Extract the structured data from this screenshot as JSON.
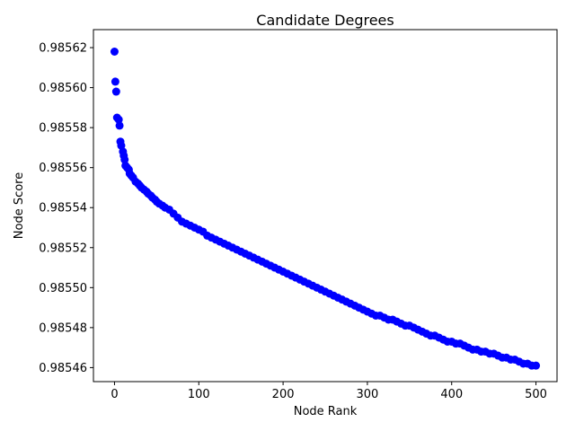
{
  "chart_data": {
    "type": "scatter",
    "title": "Candidate Degrees",
    "xlabel": "Node Rank",
    "ylabel": "Node Score",
    "xlim": [
      -25,
      525
    ],
    "ylim": [
      0.985453,
      0.985629
    ],
    "xticks": [
      0,
      100,
      200,
      300,
      400,
      500
    ],
    "xtick_labels": [
      "0",
      "100",
      "200",
      "300",
      "400",
      "500"
    ],
    "yticks": [
      0.98546,
      0.98548,
      0.9855,
      0.98552,
      0.98554,
      0.98556,
      0.98558,
      0.9856,
      0.98562
    ],
    "ytick_labels": [
      "0.98546",
      "0.98548",
      "0.98550",
      "0.98552",
      "0.98554",
      "0.98556",
      "0.98558",
      "0.98560",
      "0.98562"
    ],
    "grid": false,
    "marker_color": "#0000ff",
    "series": [
      {
        "name": "Node Score",
        "color": "#0000ff",
        "points": [
          [
            0,
            0.985618
          ],
          [
            1,
            0.985603
          ],
          [
            2,
            0.985598
          ],
          [
            3,
            0.985585
          ],
          [
            5,
            0.985584
          ],
          [
            6,
            0.985581
          ],
          [
            7,
            0.985573
          ],
          [
            8,
            0.985571
          ],
          [
            10,
            0.985568
          ],
          [
            11,
            0.985566
          ],
          [
            12,
            0.985564
          ],
          [
            13,
            0.985561
          ],
          [
            15,
            0.98556
          ],
          [
            17,
            0.985559
          ],
          [
            18,
            0.985557
          ],
          [
            20,
            0.985556
          ],
          [
            22,
            0.985555
          ],
          [
            25,
            0.985553
          ],
          [
            28,
            0.985552
          ],
          [
            30,
            0.985551
          ],
          [
            32,
            0.98555
          ],
          [
            35,
            0.985549
          ],
          [
            38,
            0.985548
          ],
          [
            40,
            0.985547
          ],
          [
            43,
            0.985546
          ],
          [
            45,
            0.985545
          ],
          [
            48,
            0.985544
          ],
          [
            50,
            0.985543
          ],
          [
            53,
            0.985542
          ],
          [
            57,
            0.985541
          ],
          [
            60,
            0.98554
          ],
          [
            65,
            0.985539
          ],
          [
            70,
            0.985537
          ],
          [
            75,
            0.985535
          ],
          [
            80,
            0.985533
          ],
          [
            85,
            0.985532
          ],
          [
            90,
            0.985531
          ],
          [
            95,
            0.98553
          ],
          [
            100,
            0.985529
          ],
          [
            105,
            0.985528
          ],
          [
            110,
            0.985526
          ],
          [
            115,
            0.985525
          ],
          [
            120,
            0.985524
          ],
          [
            125,
            0.985523
          ],
          [
            130,
            0.985522
          ],
          [
            135,
            0.985521
          ],
          [
            140,
            0.98552
          ],
          [
            145,
            0.985519
          ],
          [
            150,
            0.985518
          ],
          [
            155,
            0.985517
          ],
          [
            160,
            0.985516
          ],
          [
            165,
            0.985515
          ],
          [
            170,
            0.985514
          ],
          [
            175,
            0.985513
          ],
          [
            180,
            0.985512
          ],
          [
            185,
            0.985511
          ],
          [
            190,
            0.98551
          ],
          [
            195,
            0.985509
          ],
          [
            200,
            0.985508
          ],
          [
            205,
            0.985507
          ],
          [
            210,
            0.985506
          ],
          [
            215,
            0.985505
          ],
          [
            220,
            0.985504
          ],
          [
            225,
            0.985503
          ],
          [
            230,
            0.985502
          ],
          [
            235,
            0.985501
          ],
          [
            240,
            0.9855
          ],
          [
            245,
            0.985499
          ],
          [
            250,
            0.985498
          ],
          [
            255,
            0.985497
          ],
          [
            260,
            0.985496
          ],
          [
            265,
            0.985495
          ],
          [
            270,
            0.985494
          ],
          [
            275,
            0.985493
          ],
          [
            280,
            0.985492
          ],
          [
            285,
            0.985491
          ],
          [
            290,
            0.98549
          ],
          [
            295,
            0.985489
          ],
          [
            300,
            0.985488
          ],
          [
            305,
            0.985487
          ],
          [
            310,
            0.985486
          ],
          [
            315,
            0.985486
          ],
          [
            320,
            0.985485
          ],
          [
            325,
            0.985484
          ],
          [
            330,
            0.985484
          ],
          [
            335,
            0.985483
          ],
          [
            340,
            0.985482
          ],
          [
            345,
            0.985481
          ],
          [
            350,
            0.985481
          ],
          [
            355,
            0.98548
          ],
          [
            360,
            0.985479
          ],
          [
            365,
            0.985478
          ],
          [
            370,
            0.985477
          ],
          [
            375,
            0.985476
          ],
          [
            380,
            0.985476
          ],
          [
            385,
            0.985475
          ],
          [
            390,
            0.985474
          ],
          [
            395,
            0.985473
          ],
          [
            400,
            0.985473
          ],
          [
            405,
            0.985472
          ],
          [
            410,
            0.985472
          ],
          [
            415,
            0.985471
          ],
          [
            420,
            0.98547
          ],
          [
            425,
            0.985469
          ],
          [
            430,
            0.985469
          ],
          [
            435,
            0.985468
          ],
          [
            440,
            0.985468
          ],
          [
            445,
            0.985467
          ],
          [
            450,
            0.985467
          ],
          [
            455,
            0.985466
          ],
          [
            460,
            0.985465
          ],
          [
            465,
            0.985465
          ],
          [
            470,
            0.985464
          ],
          [
            475,
            0.985464
          ],
          [
            480,
            0.985463
          ],
          [
            485,
            0.985462
          ],
          [
            490,
            0.985462
          ],
          [
            495,
            0.985461
          ],
          [
            500,
            0.985461
          ]
        ]
      }
    ]
  }
}
